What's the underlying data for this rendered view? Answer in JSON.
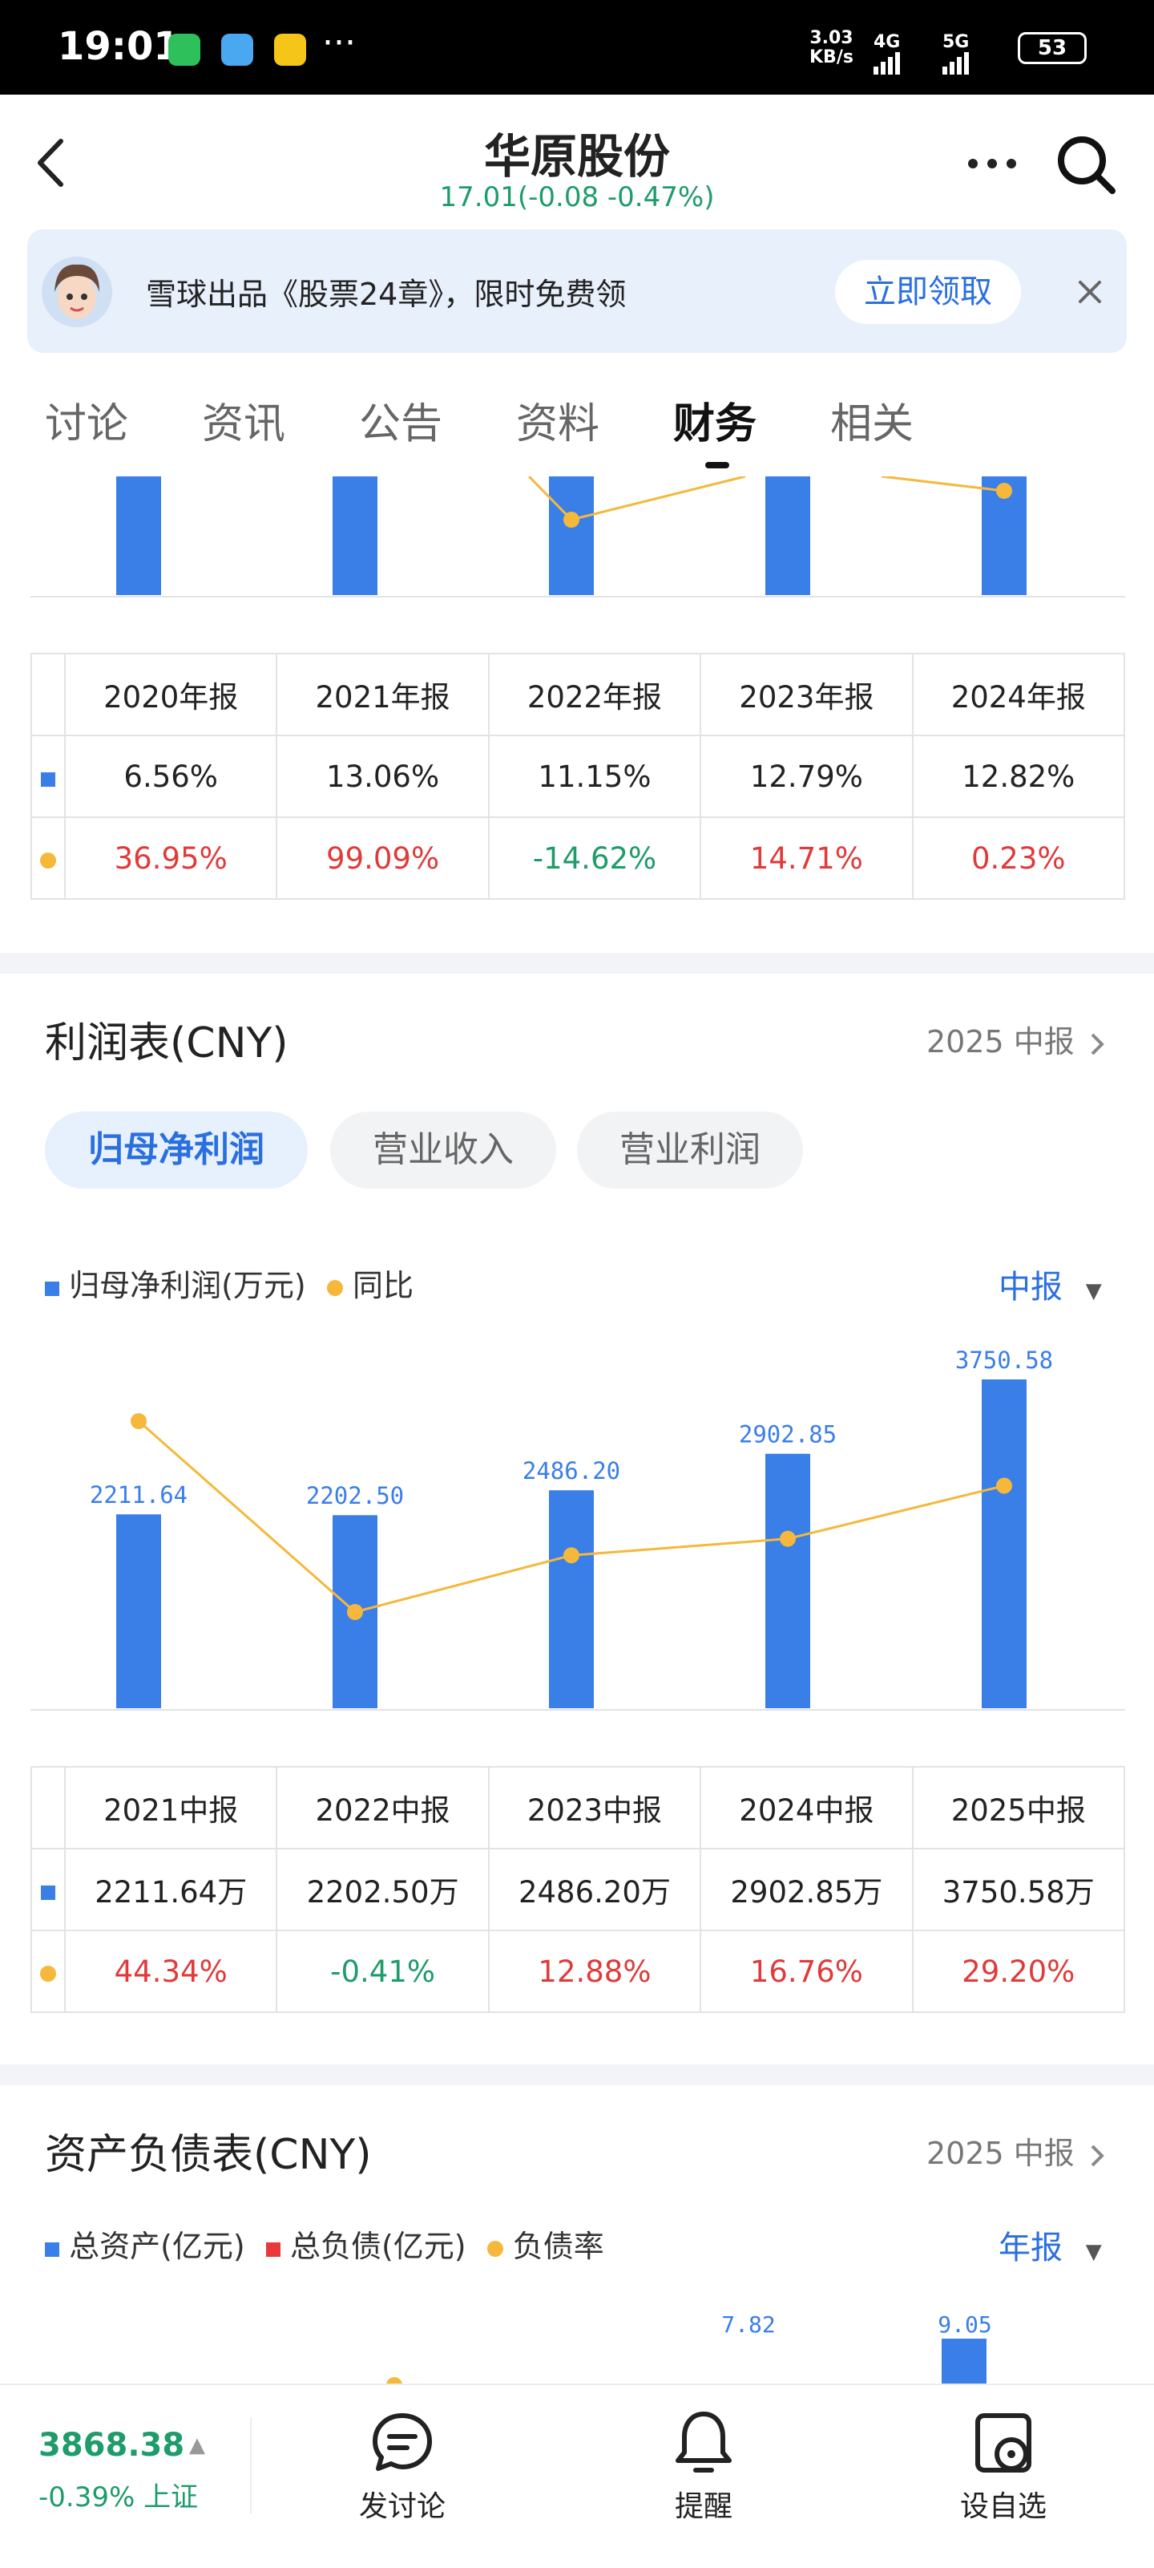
{
  "status_bar": {
    "time": "19:01",
    "net_speed": "3.03",
    "net_unit": "KB/s",
    "sig1": "4G",
    "sig2": "5G",
    "battery": "53",
    "more": "···"
  },
  "header": {
    "title": "华原股份",
    "price_line": "17.01(-0.08 -0.47%)"
  },
  "banner": {
    "text": "雪球出品《股票24章》，限时免费领",
    "button": "立即领取"
  },
  "tabs": [
    "讨论",
    "资讯",
    "公告",
    "资料",
    "财务",
    "相关"
  ],
  "table1": {
    "headers": [
      "2020年报",
      "2021年报",
      "2022年报",
      "2023年报",
      "2024年报"
    ],
    "row1": [
      "6.56%",
      "13.06%",
      "11.15%",
      "12.79%",
      "12.82%"
    ],
    "row2": [
      "36.95%",
      "99.09%",
      "-14.62%",
      "14.71%",
      "0.23%"
    ]
  },
  "income": {
    "title": "利润表(CNY)",
    "link": "2025 中报",
    "pills": [
      "归母净利润",
      "营业收入",
      "营业利润"
    ],
    "legend_bar": "归母净利润(万元)",
    "legend_line": "同比",
    "period": "中报"
  },
  "chart_data": {
    "type": "bar",
    "categories": [
      "2021中报",
      "2022中报",
      "2023中报",
      "2024中报",
      "2025中报"
    ],
    "series": [
      {
        "name": "归母净利润(万元)",
        "values": [
          2211.64,
          2202.5,
          2486.2,
          2902.85,
          3750.58
        ]
      },
      {
        "name": "同比",
        "values": [
          44.34,
          -0.41,
          12.88,
          16.76,
          29.2
        ]
      }
    ],
    "bar_labels": [
      "2211.64",
      "2202.50",
      "2486.20",
      "2902.85",
      "3750.58"
    ]
  },
  "table2": {
    "headers": [
      "2021中报",
      "2022中报",
      "2023中报",
      "2024中报",
      "2025中报"
    ],
    "row1": [
      "2211.64万",
      "2202.50万",
      "2486.20万",
      "2902.85万",
      "3750.58万"
    ],
    "row2": [
      "44.34%",
      "-0.41%",
      "12.88%",
      "16.76%",
      "29.20%"
    ]
  },
  "balance": {
    "title": "资产负债表(CNY)",
    "link": "2025 中报",
    "legend1": "总资产(亿元)",
    "legend2": "总负债(亿元)",
    "legend3": "负债率",
    "period": "年报",
    "visible_labels": [
      "7.82",
      "9.05"
    ]
  },
  "bottom": {
    "index_value": "3868.38",
    "index_change": "-0.39% 上证",
    "nav": [
      "发讨论",
      "提醒",
      "设自选"
    ]
  },
  "colors": {
    "bar": "#3a7ee8",
    "line": "#f5b83a",
    "up": "#e03a3a",
    "down": "#1e9c6a"
  }
}
